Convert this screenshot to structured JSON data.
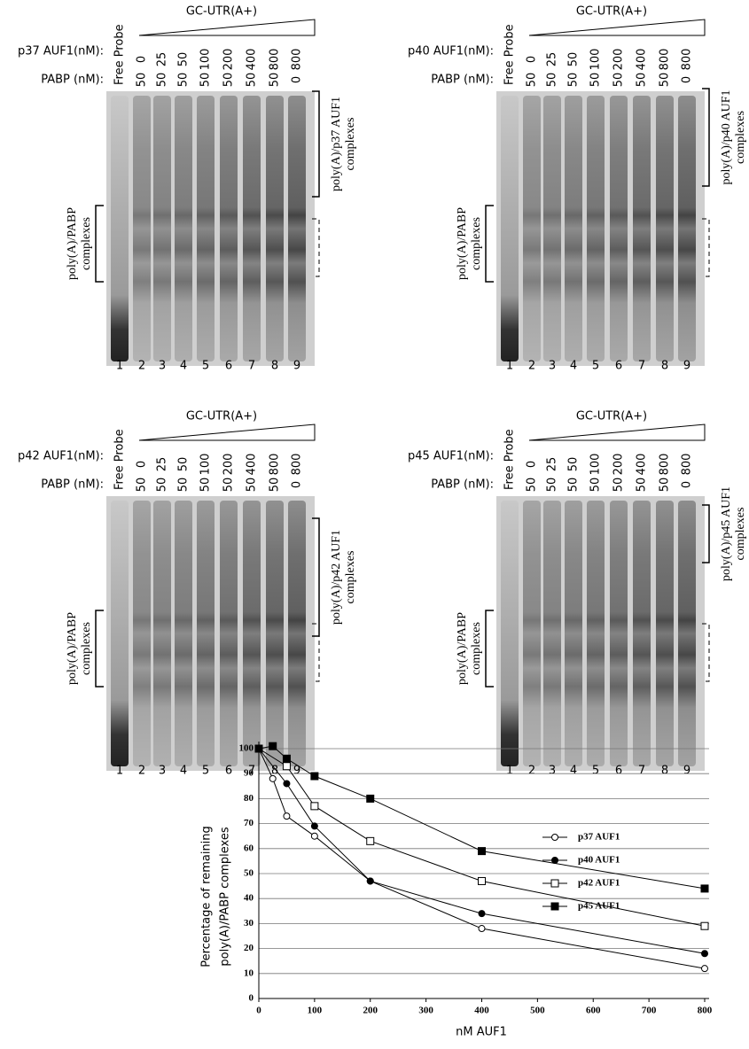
{
  "panels": [
    {
      "title": "GC-UTR(A+)",
      "free_probe": "Free Probe",
      "auf1_label": "p37 AUF1(nM):",
      "auf1": [
        0,
        25,
        50,
        100,
        200,
        400,
        800,
        800
      ],
      "pabp_label": "PABP (nM):",
      "pabp": [
        50,
        50,
        50,
        50,
        50,
        50,
        50,
        0
      ],
      "lanes": [
        1,
        2,
        3,
        4,
        5,
        6,
        7,
        8,
        9
      ],
      "complex_label": [
        "poly(A)/p37 AUF1",
        "complexes"
      ],
      "pabp_complex_label": [
        "poly(A)/PABP",
        "complexes"
      ]
    },
    {
      "title": "GC-UTR(A+)",
      "free_probe": "Free Probe",
      "auf1_label": "p40 AUF1(nM):",
      "auf1": [
        0,
        25,
        50,
        100,
        200,
        400,
        800,
        800
      ],
      "pabp_label": "PABP (nM):",
      "pabp": [
        50,
        50,
        50,
        50,
        50,
        50,
        50,
        0
      ],
      "lanes": [
        1,
        2,
        3,
        4,
        5,
        6,
        7,
        8,
        9
      ],
      "complex_label": [
        "poly(A)/p40 AUF1",
        "complexes"
      ],
      "pabp_complex_label": [
        "poly(A)/PABP",
        "complexes"
      ]
    },
    {
      "title": "GC-UTR(A+)",
      "free_probe": "Free Probe",
      "auf1_label": "p42 AUF1(nM):",
      "auf1": [
        0,
        25,
        50,
        100,
        200,
        400,
        800,
        800
      ],
      "pabp_label": "PABP (nM):",
      "pabp": [
        50,
        50,
        50,
        50,
        50,
        50,
        50,
        0
      ],
      "lanes": [
        1,
        2,
        3,
        4,
        5,
        6,
        7,
        8,
        9
      ],
      "complex_label": [
        "poly(A)/p42 AUF1",
        "complexes"
      ],
      "pabp_complex_label": [
        "poly(A)/PABP",
        "complexes"
      ]
    },
    {
      "title": "GC-UTR(A+)",
      "free_probe": "Free Probe",
      "auf1_label": "p45 AUF1(nM):",
      "auf1": [
        0,
        25,
        50,
        100,
        200,
        400,
        800,
        800
      ],
      "pabp_label": "PABP (nM):",
      "pabp": [
        50,
        50,
        50,
        50,
        50,
        50,
        50,
        0
      ],
      "lanes": [
        1,
        2,
        3,
        4,
        5,
        6,
        7,
        8,
        9
      ],
      "complex_label": [
        "poly(A)/p45 AUF1",
        "complexes"
      ],
      "pabp_complex_label": [
        "poly(A)/PABP",
        "complexes"
      ]
    }
  ],
  "chart_data": {
    "type": "line",
    "ylabel": [
      "Percentage of remaining",
      "poly(A)/PABP complexes"
    ],
    "xlabel": "nM AUF1",
    "xlim": [
      0,
      800
    ],
    "xticks": [
      0,
      100,
      200,
      300,
      400,
      500,
      600,
      700,
      800
    ],
    "ylim": [
      0,
      100
    ],
    "yticks": [
      0,
      10,
      20,
      30,
      40,
      50,
      60,
      70,
      80,
      90,
      100
    ],
    "grid": true,
    "series": [
      {
        "name": "p37 AUF1",
        "color": "#000000",
        "marker": "circle",
        "filled": false,
        "x": [
          0,
          25,
          50,
          100,
          200,
          400,
          800
        ],
        "values": [
          100,
          88,
          73,
          65,
          47,
          28,
          12
        ]
      },
      {
        "name": "p40 AUF1",
        "color": "#000000",
        "marker": "circle",
        "filled": true,
        "x": [
          0,
          50,
          100,
          200,
          400,
          800
        ],
        "values": [
          100,
          86,
          69,
          47,
          34,
          18
        ]
      },
      {
        "name": "p42 AUF1",
        "color": "#000000",
        "marker": "square",
        "filled": false,
        "x": [
          0,
          50,
          100,
          200,
          400,
          800
        ],
        "values": [
          100,
          93,
          77,
          63,
          47,
          29
        ]
      },
      {
        "name": "p45 AUF1",
        "color": "#000000",
        "marker": "square",
        "filled": true,
        "x": [
          0,
          25,
          50,
          100,
          200,
          400,
          800
        ],
        "values": [
          100,
          101,
          96,
          89,
          80,
          59,
          44
        ]
      }
    ]
  }
}
